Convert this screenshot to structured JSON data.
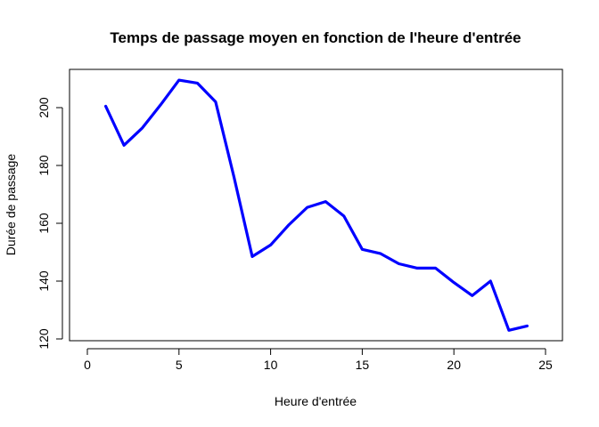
{
  "chart_data": {
    "type": "line",
    "title": "Temps de passage moyen en fonction de l'heure d'entrée",
    "xlabel": "Heure d'entrée",
    "ylabel": "Durée de passage",
    "xlim": [
      0,
      25
    ],
    "ylim": [
      120,
      210
    ],
    "xticks": [
      "0",
      "5",
      "10",
      "15",
      "20",
      "25"
    ],
    "yticks": [
      "120",
      "140",
      "160",
      "180",
      "200"
    ],
    "grid": false,
    "line_color": "#0000ff",
    "series": [
      {
        "x": [
          1,
          2,
          3,
          4,
          5,
          6,
          7,
          8,
          9,
          10,
          11,
          12,
          13,
          14,
          15,
          16,
          17,
          18,
          19,
          20,
          21,
          22,
          23,
          24
        ],
        "values": [
          200.5,
          187,
          193,
          201,
          209.5,
          208.5,
          202,
          176,
          148.5,
          152.5,
          159.5,
          165.5,
          167.5,
          162.5,
          151,
          149.5,
          146,
          144.5,
          144.5,
          139.5,
          135,
          140,
          123,
          124.5
        ]
      }
    ]
  }
}
